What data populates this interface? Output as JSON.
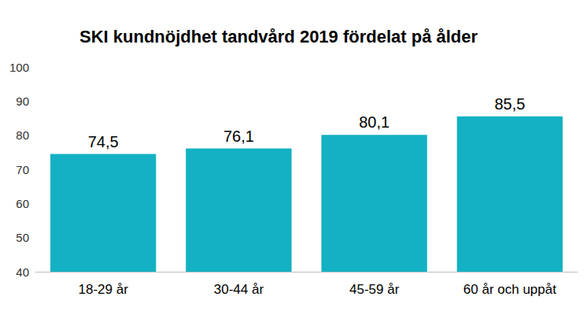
{
  "chart_data": {
    "type": "bar",
    "title": "SKI kundnöjdhet tandvård 2019 fördelat på ålder",
    "categories": [
      "18-29 år",
      "30-44 år",
      "45-59 år",
      "60 år och uppåt"
    ],
    "values": [
      74.5,
      76.1,
      80.1,
      85.5
    ],
    "value_labels": [
      "74,5",
      "76,1",
      "80,1",
      "85,5"
    ],
    "color": "#13b1c3",
    "ylim": [
      40,
      100
    ],
    "yticks": [
      40,
      50,
      60,
      70,
      80,
      90,
      100
    ],
    "grid": false,
    "data_labels": true
  }
}
